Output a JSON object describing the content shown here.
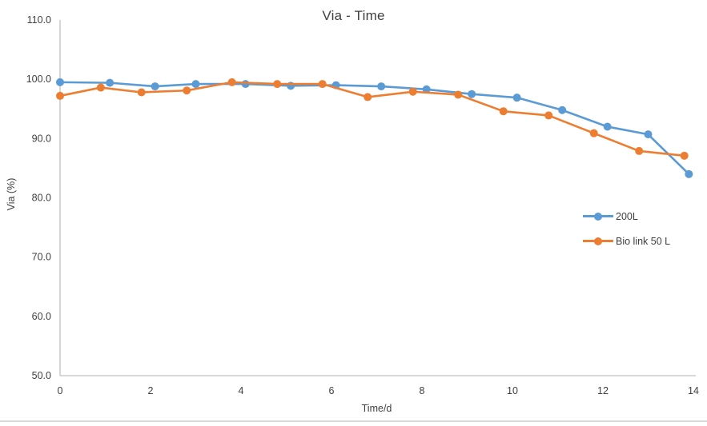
{
  "chart": {
    "title": "Via - Time",
    "x_axis_label": "Time/d",
    "y_axis_label": "Via (%)"
  },
  "colors": {
    "axis_line": "#bfbfbf",
    "text": "#404040",
    "bottom_border": "#d9d9d9"
  },
  "chart_data": {
    "type": "line",
    "title": "Via - Time",
    "xlabel": "Time/d",
    "ylabel": "Via (%)",
    "xlim": [
      0,
      14
    ],
    "ylim": [
      50,
      110
    ],
    "grid": false,
    "legend_position": "right-center",
    "x_ticks": [
      {
        "v": 0,
        "label": "0"
      },
      {
        "v": 2,
        "label": "2"
      },
      {
        "v": 4,
        "label": "4"
      },
      {
        "v": 6,
        "label": "6"
      },
      {
        "v": 8,
        "label": "8"
      },
      {
        "v": 10,
        "label": "10"
      },
      {
        "v": 12,
        "label": "12"
      },
      {
        "v": 14,
        "label": "14"
      }
    ],
    "y_ticks": [
      {
        "v": 110,
        "label": "110.0"
      },
      {
        "v": 100,
        "label": "100.0"
      },
      {
        "v": 90,
        "label": "90.0"
      },
      {
        "v": 80,
        "label": "80.0"
      },
      {
        "v": 70,
        "label": "70.0"
      },
      {
        "v": 60,
        "label": "60.0"
      },
      {
        "v": 50,
        "label": "50.0"
      }
    ],
    "series": [
      {
        "name": "200L",
        "color": "#5B9BD5",
        "x": [
          0,
          1.1,
          2.1,
          3.0,
          4.1,
          5.1,
          6.1,
          7.1,
          8.1,
          9.1,
          10.1,
          11.1,
          12.1,
          13.0,
          13.9
        ],
        "y": [
          99.5,
          99.4,
          98.8,
          99.2,
          99.2,
          98.9,
          99.0,
          98.8,
          98.3,
          97.5,
          96.9,
          94.8,
          92.0,
          90.7,
          84.0
        ]
      },
      {
        "name": "Bio link 50 L",
        "color": "#ED7D31",
        "x": [
          0,
          0.9,
          1.8,
          2.8,
          3.8,
          4.8,
          5.8,
          6.8,
          7.8,
          8.8,
          9.8,
          10.8,
          11.8,
          12.8,
          13.8
        ],
        "y": [
          97.2,
          98.6,
          97.8,
          98.1,
          99.5,
          99.2,
          99.2,
          97.0,
          97.9,
          97.4,
          94.6,
          93.9,
          90.9,
          87.9,
          87.1
        ]
      }
    ]
  }
}
